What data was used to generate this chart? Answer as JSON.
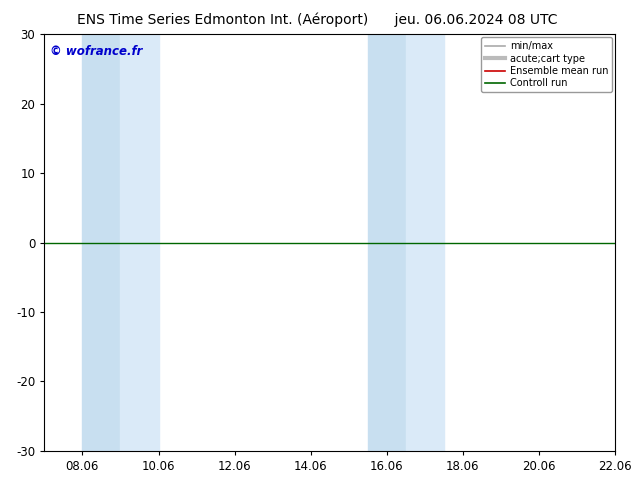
{
  "title_left": "ENS Time Series Edmonton Int. (Aéroport)",
  "title_right": "jeu. 06.06.2024 08 UTC",
  "ylim": [
    -30,
    30
  ],
  "yticks": [
    -30,
    -20,
    -10,
    0,
    10,
    20,
    30
  ],
  "xtick_labels": [
    "08.06",
    "10.06",
    "12.06",
    "14.06",
    "16.06",
    "18.06",
    "20.06",
    "22.06"
  ],
  "xtick_positions": [
    1,
    3,
    5,
    7,
    9,
    11,
    13,
    15
  ],
  "x_min": 0,
  "x_max": 15,
  "band1_x1": 1.0,
  "band1_x2": 2.0,
  "band1_color": "#c8dff0",
  "band2_x1": 2.0,
  "band2_x2": 3.0,
  "band2_color": "#daeaf8",
  "band3_x1": 8.5,
  "band3_x2": 9.5,
  "band3_color": "#c8dff0",
  "band4_x1": 9.5,
  "band4_x2": 10.5,
  "band4_color": "#daeaf8",
  "zero_line_color": "#006600",
  "ensemble_mean_color": "#cc0000",
  "min_max_color": "#aaaaaa",
  "acute_cart_color": "#bbbbbb",
  "watermark_text": "© wofrance.fr",
  "watermark_color": "#0000cc",
  "background_color": "#ffffff",
  "legend_labels": [
    "min/max",
    "acute;cart type",
    "Ensemble mean run",
    "Controll run"
  ],
  "legend_colors": [
    "#aaaaaa",
    "#bbbbbb",
    "#cc0000",
    "#006600"
  ],
  "title_fontsize": 10,
  "axis_fontsize": 8.5
}
